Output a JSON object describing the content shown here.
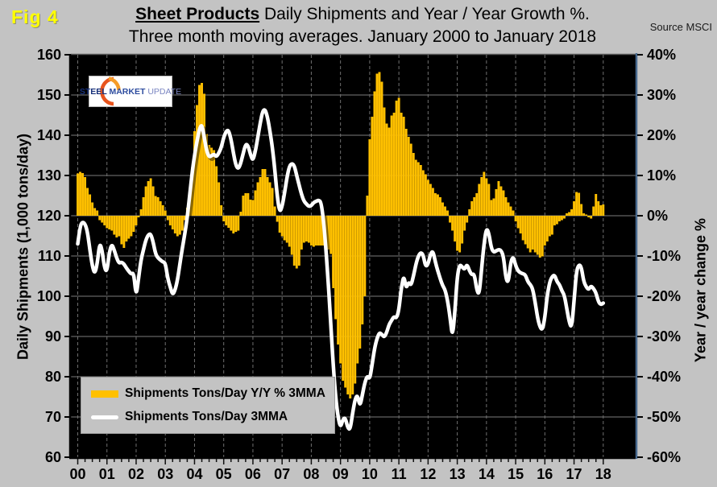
{
  "figure_label": "Fig 4",
  "title": {
    "line1_bold": "Sheet Products",
    "line1_rest": " Daily Shipments and Year / Year Growth %.",
    "line2": "Three month moving averages. January 2000 to January 2018"
  },
  "source": "Source MSCI",
  "logo": {
    "steel": "STEEL",
    "market": "MARKET",
    "update": "UPDATE"
  },
  "left_axis": {
    "title": "Daily Shipments (1,000 tons/day)",
    "tick_labels": [
      "160",
      "150",
      "140",
      "130",
      "120",
      "110",
      "100",
      "90",
      "80",
      "70",
      "60"
    ],
    "min": 60,
    "max": 160,
    "step": 10
  },
  "right_axis": {
    "title": "Year / year change %",
    "tick_labels": [
      "40%",
      "30%",
      "20%",
      "10%",
      "0%",
      "-10%",
      "-20%",
      "-30%",
      "-40%",
      "-50%",
      "-60%"
    ],
    "min": -60,
    "max": 40,
    "step": 10
  },
  "x_axis": {
    "year_labels": [
      "00",
      "01",
      "02",
      "03",
      "04",
      "05",
      "06",
      "07",
      "08",
      "09",
      "10",
      "11",
      "12",
      "13",
      "14",
      "15",
      "16",
      "17",
      "18"
    ]
  },
  "legend": {
    "items": [
      {
        "label": "Shipments Tons/Day Y/Y % 3MMA",
        "color": "#ffc000",
        "marker": "bar"
      },
      {
        "label": "Shipments Tons/Day 3MMA",
        "color": "#ffffff",
        "marker": "line"
      }
    ]
  },
  "colors": {
    "page_bg": "#c3c3c3",
    "plot_bg": "#000000",
    "bar_fill": "#ffc000",
    "line_stroke": "#ffffff",
    "h_gridline": "#7d7d7d",
    "v_gridline": "#6f6f6f",
    "right_border": "#46688e",
    "fig_label": "#ffff00"
  },
  "chart_data": {
    "type": "combo",
    "title": "Sheet Products Daily Shipments and Year / Year Growth %. Three month moving averages. January 2000 to January 2018",
    "x_start": "2000-01",
    "x_end": "2018-01",
    "frequency": "monthly",
    "n_points": 217,
    "grid": "horizontal solid, vertical dashed per year",
    "legend_position": "inside lower-left",
    "left_axis_range": [
      60,
      160
    ],
    "right_axis_range": [
      -60,
      40
    ],
    "series": [
      {
        "name": "Shipments Tons/Day Y/Y % 3MMA",
        "type": "bar",
        "axis": "right",
        "unit": "percent",
        "color": "#ffc000",
        "values": [
          10.5,
          10.9,
          10.6,
          9.6,
          6.9,
          5.3,
          3.3,
          1.9,
          1.3,
          -1.1,
          -1.7,
          -2.4,
          -3.1,
          -3.4,
          -3.7,
          -4.7,
          -5.4,
          -5.1,
          -7.1,
          -8.0,
          -6.4,
          -5.7,
          -5.1,
          -4.0,
          -2.4,
          -0.4,
          1.6,
          4.6,
          7.3,
          8.6,
          9.3,
          7.3,
          4.9,
          4.6,
          3.6,
          2.6,
          1.3,
          -1.1,
          -2.4,
          -3.4,
          -4.4,
          -5.1,
          -4.7,
          -3.7,
          -1.1,
          2.0,
          5.5,
          12.0,
          21.0,
          27.5,
          32.5,
          33.0,
          30.3,
          20.3,
          17.6,
          16.9,
          16.3,
          12.3,
          8.3,
          2.6,
          -1.4,
          -2.4,
          -3.0,
          -3.7,
          -4.4,
          -4.0,
          -3.7,
          1.0,
          5.0,
          5.6,
          5.6,
          4.0,
          3.9,
          6.3,
          8.3,
          9.6,
          11.6,
          11.6,
          9.6,
          8.3,
          6.9,
          2.3,
          -1.5,
          -4.2,
          -5.1,
          -6.1,
          -6.7,
          -7.7,
          -9.7,
          -12.4,
          -13.1,
          -12.4,
          -8.4,
          -6.7,
          -6.4,
          -6.7,
          -7.4,
          -7.7,
          -7.4,
          -7.4,
          -7.4,
          -7.4,
          -7.7,
          -8.4,
          -9.5,
          -18.0,
          -25.7,
          -32.0,
          -36.7,
          -41.0,
          -42.7,
          -44.4,
          -45.4,
          -44.4,
          -41.7,
          -36.7,
          -33.0,
          -27.0,
          -20.0,
          5.0,
          19.0,
          24.6,
          30.9,
          35.3,
          35.7,
          33.3,
          26.9,
          22.9,
          21.9,
          24.9,
          25.6,
          28.6,
          29.3,
          25.6,
          24.6,
          21.6,
          19.6,
          17.9,
          15.6,
          13.9,
          13.3,
          12.6,
          11.3,
          10.3,
          8.9,
          7.9,
          6.9,
          5.6,
          5.3,
          4.6,
          3.3,
          2.3,
          1.3,
          -1.7,
          -3.7,
          -6.4,
          -8.7,
          -9.1,
          -6.9,
          -3.7,
          -1.7,
          1.6,
          3.6,
          4.6,
          5.6,
          7.9,
          9.6,
          10.9,
          9.3,
          7.9,
          3.9,
          4.3,
          6.6,
          8.6,
          7.3,
          6.3,
          4.6,
          3.3,
          2.3,
          1.3,
          -1.4,
          -3.1,
          -4.4,
          -6.1,
          -7.1,
          -8.1,
          -9.1,
          -8.4,
          -9.1,
          -9.7,
          -10.4,
          -10.1,
          -7.4,
          -6.4,
          -5.1,
          -4.7,
          -2.4,
          -2.1,
          -1.4,
          -1.1,
          -0.7,
          0.6,
          0.9,
          1.6,
          3.6,
          5.9,
          5.7,
          2.9,
          0.6,
          0.3,
          -0.4,
          -0.7,
          2.3,
          5.4,
          3.6,
          2.6,
          2.8
        ]
      },
      {
        "name": "Shipments Tons/Day 3MMA",
        "type": "line",
        "axis": "left",
        "unit": "1000 tons/day",
        "color": "#ffffff",
        "values": [
          113,
          117.5,
          118.5,
          118,
          116,
          111.5,
          107.5,
          105.5,
          108,
          113.3,
          111.5,
          107,
          106,
          111,
          113,
          111.5,
          109.5,
          108.2,
          108.5,
          108,
          107,
          106.2,
          105.5,
          105.8,
          99.8,
          104.5,
          109,
          111.5,
          114,
          115.3,
          115.5,
          113.5,
          110.5,
          109.5,
          109,
          108.5,
          108.3,
          104.5,
          102.3,
          100.3,
          101.5,
          104,
          108,
          112,
          115.5,
          119.5,
          125,
          130.5,
          135,
          138.5,
          141.5,
          142.8,
          139.5,
          136,
          134.6,
          134.9,
          135.3,
          134.6,
          135.6,
          137,
          139.5,
          141,
          141.3,
          139,
          135.5,
          132.5,
          131.6,
          133,
          135.5,
          137.8,
          137.5,
          135.2,
          133.6,
          136,
          139.5,
          143,
          146,
          146.5,
          144.5,
          141,
          137,
          131.5,
          124.9,
          120.8,
          122.3,
          125.6,
          129.5,
          132.3,
          133,
          132.5,
          130,
          127.6,
          125.3,
          123.6,
          122.9,
          122.3,
          122.5,
          123.3,
          123.6,
          123.9,
          123.4,
          119,
          112,
          103,
          93,
          83,
          75,
          70,
          67.3,
          69.5,
          69.8,
          67.2,
          66.9,
          71,
          74.5,
          75.5,
          72.5,
          75.5,
          78.5,
          80.3,
          79.3,
          83,
          87,
          89.5,
          91,
          90.5,
          89.8,
          91,
          93,
          94,
          95,
          94.5,
          96.5,
          102,
          105.3,
          101.8,
          103.6,
          102.6,
          105,
          108,
          110,
          110.9,
          110.3,
          107.3,
          108,
          110.5,
          111.3,
          108.5,
          106.3,
          104.3,
          102.6,
          101.6,
          99,
          95,
          89.6,
          96,
          105,
          107.9,
          107.3,
          106.6,
          108,
          106.3,
          105.3,
          105.6,
          101.5,
          100.3,
          106.9,
          113,
          117,
          115.6,
          111.9,
          110.9,
          111.3,
          111.6,
          111.4,
          109.9,
          104.3,
          103.3,
          108.6,
          109.9,
          107.6,
          106.3,
          105.8,
          105.6,
          105.3,
          103.6,
          102.9,
          101.9,
          98.6,
          94.6,
          92.3,
          91.6,
          94.6,
          100.3,
          103.6,
          104.9,
          105.3,
          103.6,
          102.9,
          101.3,
          100.3,
          97,
          93.6,
          92,
          98.9,
          106.3,
          107.9,
          107.3,
          103.6,
          102.3,
          101.6,
          102.6,
          101.9,
          100.9,
          98.6,
          97.9,
          98.3
        ]
      }
    ]
  }
}
